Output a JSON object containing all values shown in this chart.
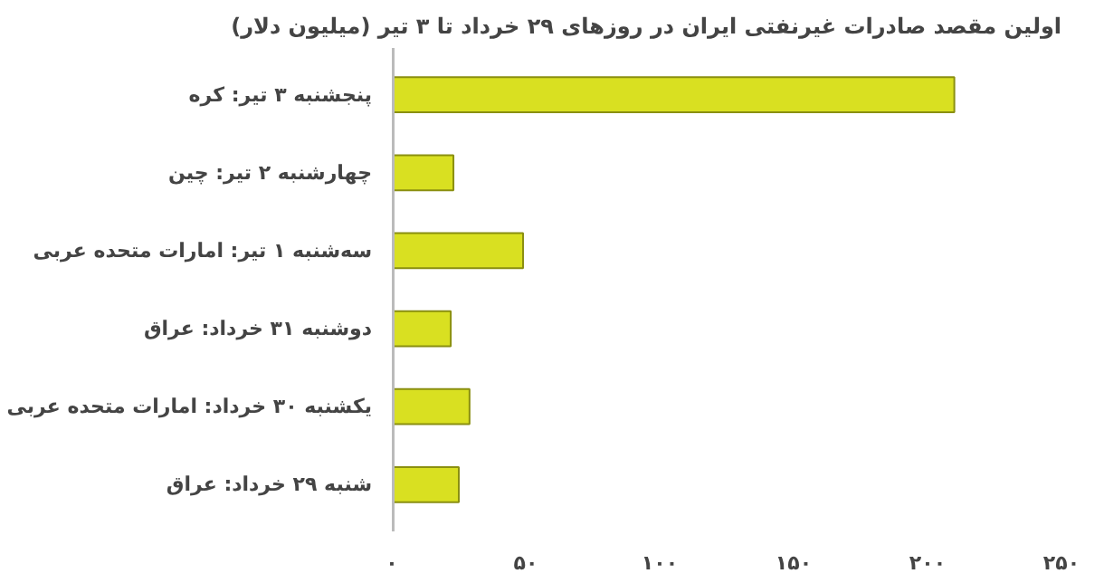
{
  "chart_data": {
    "type": "bar",
    "orientation": "horizontal",
    "title": "اولین مقصد صادرات غیرنفتی ایران در روزهای ۲۹ خرداد تا ۳ تیر (میلیون دلار)",
    "categories": [
      "پنجشنبه ۳ تیر: کره",
      "چهارشنبه ۲ تیر: چین",
      "سه‌شنبه ۱ تیر: امارات متحده عربی",
      "دوشنبه ۳۱ خرداد: عراق",
      "یکشنبه ۳۰ خرداد: امارات متحده عربی",
      "شنبه ۲۹ خرداد: عراق"
    ],
    "values": [
      210,
      23,
      49,
      22,
      29,
      25
    ],
    "color": "#d9e021",
    "xlim": [
      0,
      250
    ],
    "xticks": [
      {
        "value": 0,
        "label": "۰"
      },
      {
        "value": 50,
        "label": "۵۰"
      },
      {
        "value": 100,
        "label": "۱۰۰"
      },
      {
        "value": 150,
        "label": "۱۵۰"
      },
      {
        "value": 200,
        "label": "۲۰۰"
      },
      {
        "value": 250,
        "label": "۲۵۰"
      }
    ],
    "grid": false
  }
}
